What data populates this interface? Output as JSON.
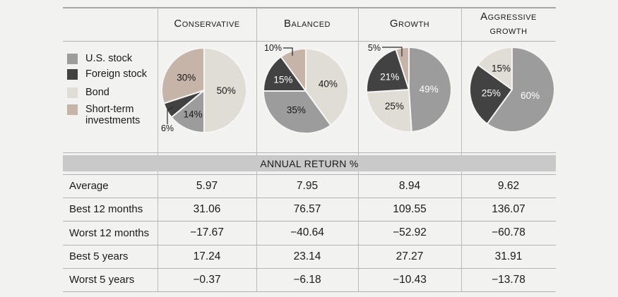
{
  "page": {
    "background": "#f2f2f1",
    "band_color": "#c9c9c9"
  },
  "chart_data": {
    "type": "pie",
    "legend_position": "left",
    "categories": [
      {
        "name": "U.S. stock",
        "color": "#9c9c9c"
      },
      {
        "name": "Foreign stock",
        "color": "#424242"
      },
      {
        "name": "Bond",
        "color": "#e0ddd7"
      },
      {
        "name": "Short-term investments",
        "color": "#c6b4a9"
      }
    ],
    "pies": [
      {
        "name": "Conservative",
        "slices": [
          {
            "category": "Bond",
            "pct": 50
          },
          {
            "category": "U.S. stock",
            "pct": 14
          },
          {
            "category": "Foreign stock",
            "pct": 6
          },
          {
            "category": "Short-term investments",
            "pct": 30
          }
        ]
      },
      {
        "name": "Balanced",
        "slices": [
          {
            "category": "Bond",
            "pct": 40
          },
          {
            "category": "U.S. stock",
            "pct": 35
          },
          {
            "category": "Foreign stock",
            "pct": 15
          },
          {
            "category": "Short-term investments",
            "pct": 10
          }
        ]
      },
      {
        "name": "Growth",
        "slices": [
          {
            "category": "U.S. stock",
            "pct": 49
          },
          {
            "category": "Bond",
            "pct": 25
          },
          {
            "category": "Foreign stock",
            "pct": 21
          },
          {
            "category": "Short-term investments",
            "pct": 5
          }
        ]
      },
      {
        "name": "Aggressive growth",
        "slices": [
          {
            "category": "U.S. stock",
            "pct": 60
          },
          {
            "category": "Foreign stock",
            "pct": 25
          },
          {
            "category": "Bond",
            "pct": 15
          }
        ]
      }
    ],
    "annual_return_table": {
      "header": "ANNUAL RETURN %",
      "columns": [
        "Conservative",
        "Balanced",
        "Growth",
        "Aggressive growth"
      ],
      "rows": [
        {
          "label": "Average",
          "values": [
            "5.97",
            "7.95",
            "8.94",
            "9.62"
          ]
        },
        {
          "label": "Best 12 months",
          "values": [
            "31.06",
            "76.57",
            "109.55",
            "136.07"
          ]
        },
        {
          "label": "Worst 12 months",
          "values": [
            "−17.67",
            "−40.64",
            "−52.92",
            "−60.78"
          ]
        },
        {
          "label": "Best 5 years",
          "values": [
            "17.24",
            "23.14",
            "27.27",
            "31.91"
          ]
        },
        {
          "label": "Worst 5 years",
          "values": [
            "−0.37",
            "−6.18",
            "−10.43",
            "−13.78"
          ]
        }
      ]
    }
  }
}
